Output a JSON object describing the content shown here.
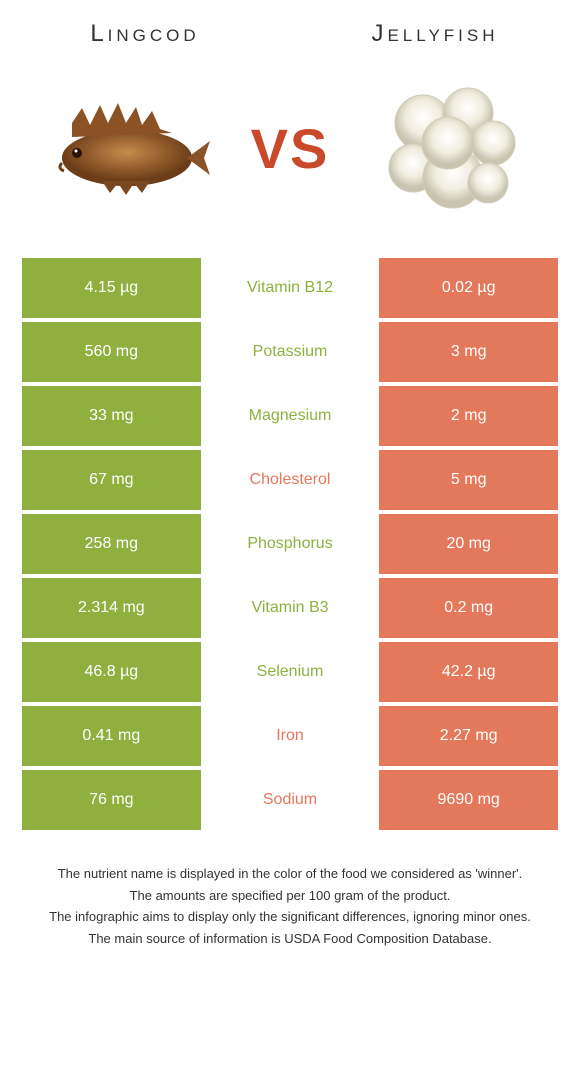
{
  "colors": {
    "green": "#8fb03e",
    "orange": "#e4785a",
    "text_green": "#8fb03e",
    "text_orange": "#e4785a"
  },
  "header": {
    "left": "Lingcod",
    "right": "Jellyfish",
    "vs": "VS"
  },
  "rows": [
    {
      "left": "4.15 µg",
      "mid": "Vitamin B12",
      "right": "0.02 µg",
      "winner": "left"
    },
    {
      "left": "560 mg",
      "mid": "Potassium",
      "right": "3 mg",
      "winner": "left"
    },
    {
      "left": "33 mg",
      "mid": "Magnesium",
      "right": "2 mg",
      "winner": "left"
    },
    {
      "left": "67 mg",
      "mid": "Cholesterol",
      "right": "5 mg",
      "winner": "right"
    },
    {
      "left": "258 mg",
      "mid": "Phosphorus",
      "right": "20 mg",
      "winner": "left"
    },
    {
      "left": "2.314 mg",
      "mid": "Vitamin B3",
      "right": "0.2 mg",
      "winner": "left"
    },
    {
      "left": "46.8 µg",
      "mid": "Selenium",
      "right": "42.2 µg",
      "winner": "left"
    },
    {
      "left": "0.41 mg",
      "mid": "Iron",
      "right": "2.27 mg",
      "winner": "right"
    },
    {
      "left": "76 mg",
      "mid": "Sodium",
      "right": "9690 mg",
      "winner": "right"
    }
  ],
  "footer": [
    "The nutrient name is displayed in the color of the food we considered as 'winner'.",
    "The amounts are specified per 100 gram of the product.",
    "The infographic aims to display only the significant differences, ignoring minor ones.",
    "The main source of information is USDA Food Composition Database."
  ]
}
